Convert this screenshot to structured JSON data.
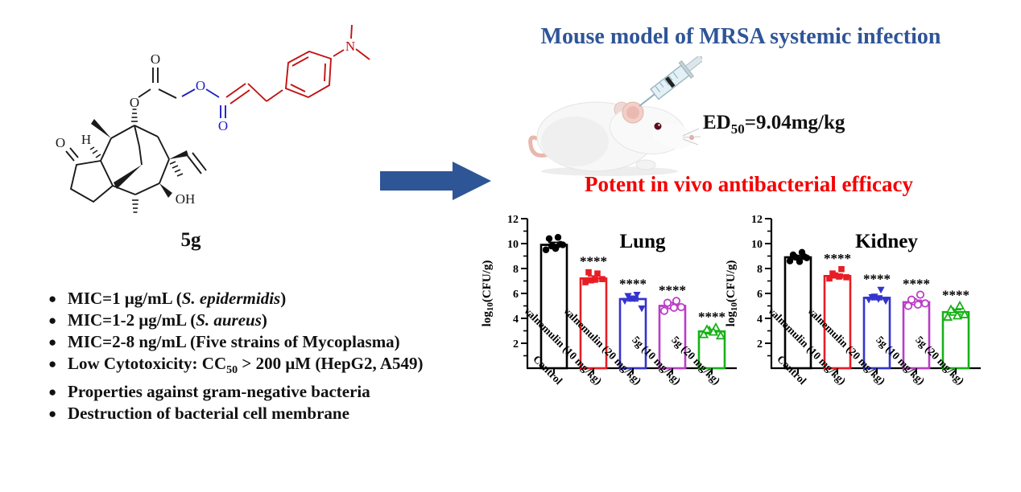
{
  "headline": {
    "title": "Mouse model of MRSA systemic infection",
    "title_color": "#2f5597",
    "ed50": {
      "prefix": "ED",
      "sub": "50",
      "rest": "=9.04mg/kg"
    },
    "efficacy": "Potent in vivo antibacterial efficacy",
    "efficacy_color": "#f40000"
  },
  "arrow": {
    "color": "#2e5596"
  },
  "molecule": {
    "compound_label": "5g",
    "colors": {
      "core": "#1a1a1a",
      "linker": "#2121c4",
      "aryl": "#c31212"
    },
    "atoms": {
      "ketone_o": "O",
      "ring_h": "H",
      "hydroxyl": "OH",
      "ester_o": "O",
      "ester_carbonyl_o": "O",
      "linker_o": "O",
      "acrylate_carbonyl_o": "O",
      "amine_n": "N"
    }
  },
  "bullets_marker": "●",
  "bullets": [
    [
      {
        "t": "MIC=1 μg/mL ("
      },
      {
        "t": "S. epidermidis",
        "i": 1
      },
      {
        "t": ")"
      }
    ],
    [
      {
        "t": "MIC=1-2 μg/mL ("
      },
      {
        "t": "S. aureus",
        "i": 1
      },
      {
        "t": ")"
      }
    ],
    [
      {
        "t": "MIC=2-8 ng/mL (Five strains of Mycoplasma)"
      }
    ],
    [
      {
        "t": "Low Cytotoxicity: CC"
      },
      {
        "t": "50",
        "s": 1
      },
      {
        "t": " > 200 μM (HepG2, A549)"
      }
    ],
    [
      {
        "t": "Properties against gram-negative bacteria"
      }
    ],
    [
      {
        "t": "Destruction of bacterial cell membrane"
      }
    ]
  ],
  "chart_data": [
    {
      "type": "bar",
      "title": "Lung",
      "ylabel_parts": {
        "prefix": "log",
        "sub": "10",
        "suffix": "(CFU/g)"
      },
      "ylim": [
        0,
        12
      ],
      "yticks_major": [
        2,
        4,
        6,
        8,
        10,
        12
      ],
      "grid": false,
      "categories": [
        "Control",
        "valnemulin (10 mg/kg)",
        "valnemulin (20 mg/kg)",
        "5g (10 mg/kg)",
        "5g (20 mg/kg)"
      ],
      "bars": [
        {
          "label": "Control",
          "color": "#000000",
          "marker": "circle-filled",
          "mean": 9.9,
          "sem": 0.2,
          "sig": "",
          "points": [
            9.5,
            9.8,
            10.5,
            9.9,
            10.4,
            9.6,
            9.95
          ]
        },
        {
          "label": "valnemulin (10 mg/kg)",
          "color": "#e81d24",
          "marker": "square-filled",
          "mean": 7.2,
          "sem": 0.2,
          "sig": "****",
          "points": [
            6.9,
            7.05,
            7.6,
            7.15,
            7.7,
            7.1
          ]
        },
        {
          "label": "valnemulin (20 mg/kg)",
          "color": "#3434cd",
          "marker": "triangle-down-filled",
          "mean": 5.55,
          "sem": 0.15,
          "sig": "****",
          "points": [
            5.4,
            5.6,
            5.9,
            4.8,
            5.8,
            5.6
          ]
        },
        {
          "label": "5g (10 mg/kg)",
          "color": "#b93dc6",
          "marker": "circle-open",
          "mean": 5.0,
          "sem": 0.15,
          "sig": "****",
          "points": [
            4.6,
            5.05,
            5.4,
            4.9,
            5.25,
            4.85
          ]
        },
        {
          "label": "5g (20 mg/kg)",
          "color": "#17b117",
          "marker": "triangle-up-open",
          "mean": 2.95,
          "sem": 0.15,
          "sig": "****",
          "points": [
            2.7,
            3.0,
            3.25,
            2.6,
            3.1,
            2.9
          ]
        }
      ]
    },
    {
      "type": "bar",
      "title": "Kidney",
      "ylabel_parts": {
        "prefix": "log",
        "sub": "10",
        "suffix": "(CFU/g)"
      },
      "ylim": [
        0,
        12
      ],
      "yticks_major": [
        2,
        4,
        6,
        8,
        10,
        12
      ],
      "grid": false,
      "categories": [
        "Control",
        "valnemulin (10 mg/kg)",
        "valnemulin (20 mg/kg)",
        "5g (10 mg/kg)",
        "5g (20 mg/kg)"
      ],
      "bars": [
        {
          "label": "Control",
          "color": "#000000",
          "marker": "circle-filled",
          "mean": 8.9,
          "sem": 0.15,
          "sig": "",
          "points": [
            8.6,
            8.9,
            9.3,
            8.85,
            9.1,
            8.55,
            8.95
          ]
        },
        {
          "label": "valnemulin (10 mg/kg)",
          "color": "#e81d24",
          "marker": "square-filled",
          "mean": 7.4,
          "sem": 0.15,
          "sig": "****",
          "points": [
            7.2,
            7.45,
            7.95,
            7.3,
            7.6,
            7.35
          ]
        },
        {
          "label": "valnemulin (20 mg/kg)",
          "color": "#3434cd",
          "marker": "triangle-down-filled",
          "mean": 5.65,
          "sem": 0.15,
          "sig": "****",
          "points": [
            5.5,
            5.75,
            6.3,
            5.4,
            5.7,
            5.55
          ]
        },
        {
          "label": "5g (10 mg/kg)",
          "color": "#b93dc6",
          "marker": "circle-open",
          "mean": 5.3,
          "sem": 0.15,
          "sig": "****",
          "points": [
            5.0,
            5.35,
            5.9,
            5.2,
            5.5,
            5.1
          ]
        },
        {
          "label": "5g (20 mg/kg)",
          "color": "#17b117",
          "marker": "triangle-up-open",
          "mean": 4.5,
          "sem": 0.2,
          "sig": "****",
          "points": [
            4.1,
            4.5,
            5.0,
            4.3,
            4.7,
            4.2
          ]
        }
      ]
    }
  ]
}
